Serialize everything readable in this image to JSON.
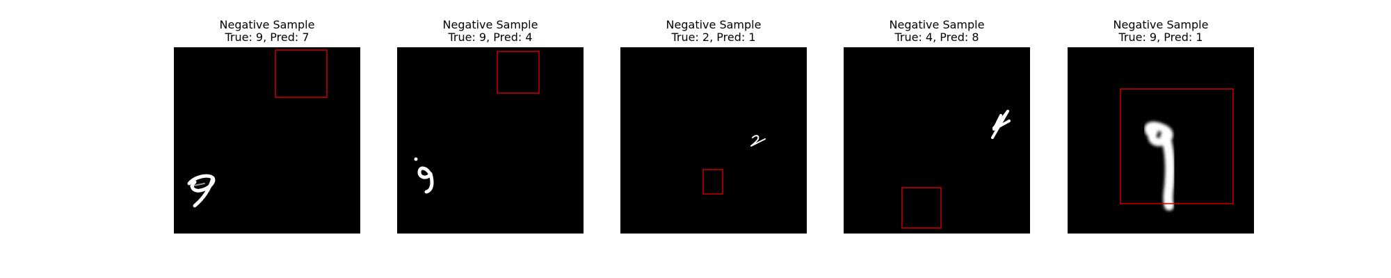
{
  "panels": [
    {
      "title": "Negative Sample",
      "subtitle": "True: 9, Pred: 7"
    },
    {
      "title": "Negative Sample",
      "subtitle": "True: 9, Pred: 4"
    },
    {
      "title": "Negative Sample",
      "subtitle": "True: 2, Pred: 1"
    },
    {
      "title": "Negative Sample",
      "subtitle": "True: 4, Pred: 8"
    },
    {
      "title": "Negative Sample",
      "subtitle": "True: 9, Pred: 1"
    }
  ],
  "colors": {
    "box": "#cc0000",
    "background": "#000000",
    "digit": "#ffffff"
  }
}
